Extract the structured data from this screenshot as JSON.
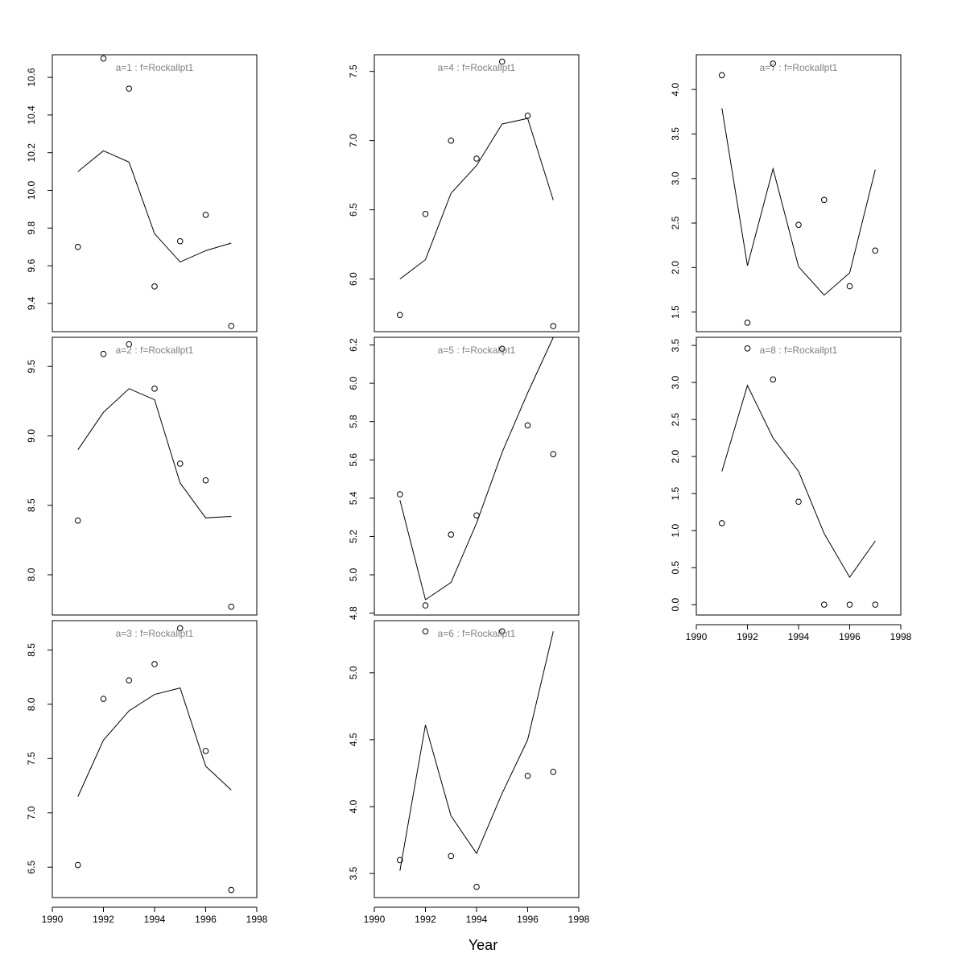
{
  "figure": {
    "xlabel": "Year"
  },
  "chart_data": [
    {
      "type": "line",
      "title": "a=1  :  f=Rockallpt1",
      "x": [
        1991,
        1992,
        1993,
        1994,
        1995,
        1996,
        1997
      ],
      "series": [
        {
          "kind": "fitted",
          "values": [
            10.1,
            10.21,
            10.15,
            9.77,
            9.62,
            9.68,
            9.72
          ]
        },
        {
          "kind": "observed",
          "values": [
            9.7,
            10.7,
            10.54,
            9.49,
            9.73,
            9.87,
            9.28
          ]
        }
      ],
      "xlim": [
        1990,
        1998
      ],
      "ylim": [
        9.25,
        10.72
      ],
      "yticks": [
        9.4,
        9.6,
        9.8,
        10.0,
        10.2,
        10.4,
        10.6
      ],
      "yticklabels": [
        "9.4",
        "9.6",
        "9.8",
        "10.0",
        "10.2",
        "10.4",
        "10.6"
      ]
    },
    {
      "type": "line",
      "title": "a=2  :  f=Rockallpt1",
      "x": [
        1991,
        1992,
        1993,
        1994,
        1995,
        1996,
        1997
      ],
      "series": [
        {
          "kind": "fitted",
          "values": [
            8.9,
            9.17,
            9.34,
            9.26,
            8.66,
            8.41,
            8.42
          ]
        },
        {
          "kind": "observed",
          "values": [
            8.39,
            9.59,
            9.66,
            9.34,
            8.8,
            8.68,
            7.77
          ]
        }
      ],
      "xlim": [
        1990,
        1998
      ],
      "ylim": [
        7.71,
        9.71
      ],
      "yticks": [
        8.0,
        8.5,
        9.0,
        9.5
      ],
      "yticklabels": [
        "8.0",
        "8.5",
        "9.0",
        "9.5"
      ]
    },
    {
      "type": "line",
      "title": "a=3  :  f=Rockallpt1",
      "x": [
        1991,
        1992,
        1993,
        1994,
        1995,
        1996,
        1997
      ],
      "series": [
        {
          "kind": "fitted",
          "values": [
            7.15,
            7.67,
            7.94,
            8.09,
            8.15,
            7.43,
            7.21
          ]
        },
        {
          "kind": "observed",
          "values": [
            6.52,
            8.05,
            8.22,
            8.37,
            8.7,
            7.57,
            6.29
          ]
        }
      ],
      "xlim": [
        1990,
        1998
      ],
      "ylim": [
        6.22,
        8.77
      ],
      "yticks": [
        6.5,
        7.0,
        7.5,
        8.0,
        8.5
      ],
      "yticklabels": [
        "6.5",
        "7.0",
        "7.5",
        "8.0",
        "8.5"
      ]
    },
    {
      "type": "line",
      "title": "a=4  :  f=Rockallpt1",
      "x": [
        1991,
        1992,
        1993,
        1994,
        1995,
        1996,
        1997
      ],
      "series": [
        {
          "kind": "fitted",
          "values": [
            6.0,
            6.14,
            6.62,
            6.82,
            7.12,
            7.16,
            6.57
          ]
        },
        {
          "kind": "observed",
          "values": [
            5.74,
            6.47,
            7.0,
            6.87,
            7.57,
            7.18,
            5.66
          ]
        }
      ],
      "xlim": [
        1990,
        1998
      ],
      "ylim": [
        5.62,
        7.62
      ],
      "yticks": [
        6.0,
        6.5,
        7.0,
        7.5
      ],
      "yticklabels": [
        "6.0",
        "6.5",
        "7.0",
        "7.5"
      ]
    },
    {
      "type": "line",
      "title": "a=5  :  f=Rockallpt1",
      "x": [
        1991,
        1992,
        1993,
        1994,
        1995,
        1996,
        1997
      ],
      "series": [
        {
          "kind": "fitted",
          "values": [
            5.39,
            4.87,
            4.96,
            5.27,
            5.64,
            5.95,
            6.24
          ]
        },
        {
          "kind": "observed",
          "values": [
            5.42,
            4.84,
            5.21,
            5.31,
            6.18,
            5.78,
            5.63
          ]
        }
      ],
      "xlim": [
        1990,
        1998
      ],
      "ylim": [
        4.79,
        6.24
      ],
      "yticks": [
        4.8,
        5.0,
        5.2,
        5.4,
        5.6,
        5.8,
        6.0,
        6.2
      ],
      "yticklabels": [
        "4.8",
        "5.0",
        "5.2",
        "5.4",
        "5.6",
        "5.8",
        "6.0",
        "6.2"
      ]
    },
    {
      "type": "line",
      "title": "a=6  :  f=Rockallpt1",
      "x": [
        1991,
        1992,
        1993,
        1994,
        1995,
        1996,
        1997
      ],
      "series": [
        {
          "kind": "fitted",
          "values": [
            3.52,
            4.61,
            3.93,
            3.65,
            4.1,
            4.5,
            5.31
          ]
        },
        {
          "kind": "observed",
          "values": [
            3.6,
            5.31,
            3.63,
            3.4,
            5.31,
            4.23,
            4.26
          ]
        }
      ],
      "xlim": [
        1990,
        1998
      ],
      "ylim": [
        3.32,
        5.39
      ],
      "yticks": [
        3.5,
        4.0,
        4.5,
        5.0
      ],
      "yticklabels": [
        "3.5",
        "4.0",
        "4.5",
        "5.0"
      ]
    },
    {
      "type": "line",
      "title": "a=7  :  f=Rockallpt1",
      "x": [
        1991,
        1992,
        1993,
        1994,
        1995,
        1996,
        1997
      ],
      "series": [
        {
          "kind": "fitted",
          "values": [
            3.79,
            2.02,
            3.11,
            2.01,
            1.69,
            1.94,
            3.1
          ]
        },
        {
          "kind": "observed",
          "values": [
            4.16,
            1.38,
            4.29,
            2.48,
            2.76,
            1.79,
            2.19
          ]
        }
      ],
      "xlim": [
        1990,
        1998
      ],
      "ylim": [
        1.28,
        4.39
      ],
      "yticks": [
        1.5,
        2.0,
        2.5,
        3.0,
        3.5,
        4.0
      ],
      "yticklabels": [
        "1.5",
        "2.0",
        "2.5",
        "3.0",
        "3.5",
        "4.0"
      ]
    },
    {
      "type": "line",
      "title": "a=8  :  f=Rockallpt1",
      "x": [
        1991,
        1992,
        1993,
        1994,
        1995,
        1996,
        1997
      ],
      "series": [
        {
          "kind": "fitted",
          "values": [
            1.8,
            2.96,
            2.25,
            1.8,
            0.96,
            0.37,
            0.86
          ]
        },
        {
          "kind": "observed",
          "values": [
            1.1,
            3.46,
            3.04,
            1.39,
            0.0,
            0.0,
            0.0
          ]
        }
      ],
      "xlim": [
        1990,
        1998
      ],
      "ylim": [
        -0.14,
        3.61
      ],
      "yticks": [
        0.0,
        0.5,
        1.0,
        1.5,
        2.0,
        2.5,
        3.0,
        3.5
      ],
      "yticklabels": [
        "0.0",
        "0.5",
        "1.0",
        "1.5",
        "2.0",
        "2.5",
        "3.0",
        "3.5"
      ]
    }
  ],
  "x_axis": {
    "ticks": [
      1990,
      1992,
      1994,
      1996,
      1998
    ],
    "ticklabels": [
      "1990",
      "1992",
      "1994",
      "1996",
      "1998"
    ]
  }
}
